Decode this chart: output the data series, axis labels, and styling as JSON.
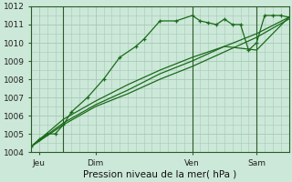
{
  "title": "Pression niveau de la mer( hPa )",
  "background_color": "#cce8d8",
  "plot_bg_color": "#cce8d8",
  "grid_color": "#a8c8b8",
  "line_color": "#1a6b1a",
  "dark_line_color": "#2a5a2a",
  "ylim": [
    1004,
    1012
  ],
  "yticks": [
    1004,
    1005,
    1006,
    1007,
    1008,
    1009,
    1010,
    1011,
    1012
  ],
  "xlim": [
    0,
    16
  ],
  "day_labels": [
    "Jeu",
    "Dim",
    "Ven",
    "Sam"
  ],
  "day_positions": [
    0.5,
    4,
    10,
    14
  ],
  "vline_positions": [
    2.0,
    10.0,
    14.0
  ],
  "line1_x": [
    0.0,
    0.5,
    1.0,
    1.5,
    2.0,
    2.5,
    3.5,
    4.5,
    5.5,
    6.5,
    7.0,
    8.0,
    9.0,
    10.0,
    10.5,
    11.0,
    11.5,
    12.0,
    12.5,
    13.0,
    13.5,
    14.0,
    14.5,
    15.0,
    15.5,
    16.0
  ],
  "line1_y": [
    1004.3,
    1004.7,
    1005.0,
    1005.0,
    1005.5,
    1006.2,
    1007.0,
    1008.0,
    1009.2,
    1009.8,
    1010.2,
    1011.2,
    1011.2,
    1011.5,
    1011.2,
    1011.1,
    1011.0,
    1011.3,
    1011.0,
    1011.0,
    1009.6,
    1010.0,
    1011.5,
    1011.5,
    1011.5,
    1011.4
  ],
  "line2_x": [
    0.0,
    2.0,
    4.0,
    6.0,
    8.0,
    10.0,
    12.0,
    14.0,
    16.0
  ],
  "line2_y": [
    1004.3,
    1005.5,
    1006.5,
    1007.2,
    1008.0,
    1008.7,
    1009.5,
    1010.3,
    1011.3
  ],
  "line3_x": [
    0.0,
    2.0,
    4.0,
    6.0,
    8.0,
    10.0,
    12.0,
    14.0,
    16.0
  ],
  "line3_y": [
    1004.3,
    1005.6,
    1006.6,
    1007.4,
    1008.3,
    1009.0,
    1009.8,
    1010.5,
    1011.4
  ],
  "line4_x": [
    0.0,
    2.0,
    4.0,
    6.0,
    8.0,
    10.0,
    12.0,
    14.0,
    16.0
  ],
  "line4_y": [
    1004.3,
    1005.8,
    1006.8,
    1007.7,
    1008.5,
    1009.2,
    1009.8,
    1009.6,
    1011.4
  ]
}
